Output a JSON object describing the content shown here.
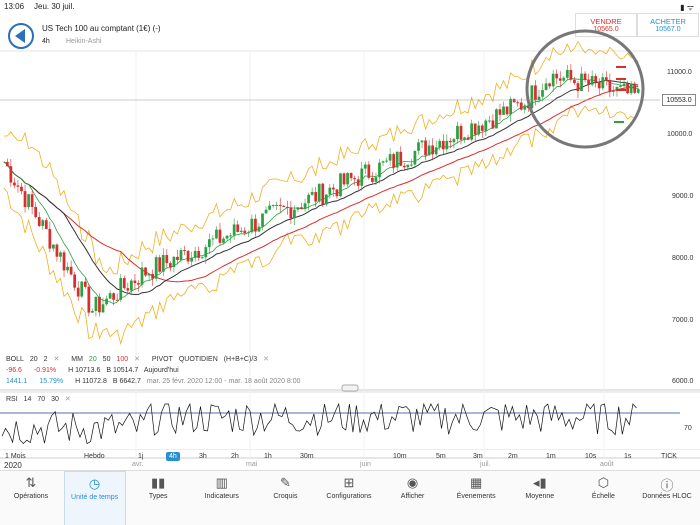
{
  "status": {
    "time": "13:06",
    "date": "Jeu. 30 juil.",
    "battery": "▮ ᯤ"
  },
  "instrument": {
    "title": "US Tech 100 au comptant (1€) (-)",
    "timeframe": "4h",
    "candle_type": "Heikin-Ashi"
  },
  "trade": {
    "sell_label": "VENDRE",
    "sell_price": "10565.0",
    "buy_label": "ACHETER",
    "buy_price": "10567.0"
  },
  "price_axis": [
    "11000.0",
    "10000.0",
    "9000.0",
    "8000.0",
    "7000.0",
    "6000.0"
  ],
  "current_price": "10553.0",
  "indicators": {
    "boll": "BOLL",
    "boll_p1": "20",
    "boll_p2": "2",
    "boll_x": "✕",
    "mm": "MM",
    "mm_p1": "20",
    "mm_p2": "50",
    "mm_p3": "100",
    "mm_x": "✕",
    "pivot": "PIVOT",
    "pivot_mode": "QUOTIDIEN",
    "pivot_formula": "(H+B+C)/3",
    "pivot_x": "✕"
  },
  "stats": {
    "change": "-96.6",
    "change_pct": "-0.91%",
    "high_today": "H 10713.6",
    "low_today": "B 10514.7",
    "today_label": "Aujourd'hui",
    "range_change": "1441.1",
    "range_pct": "15.79%",
    "high_range": "H 11072.8",
    "low_range": "B 6642.7",
    "range_label": "mar. 25 févr. 2020 12:00 - mar. 18 août 2020 8:00"
  },
  "rsi": {
    "label": "RSI",
    "p1": "14",
    "p2": "70",
    "p3": "30",
    "x": "✕",
    "level": "70"
  },
  "time_axis": {
    "year": "2020",
    "months": [
      "avr.",
      "mai",
      "juin",
      "juil.",
      "août"
    ]
  },
  "periods": [
    "1 Mois",
    "Hebdo",
    "1j",
    "4h",
    "3h",
    "2h",
    "1h",
    "30m",
    "10m",
    "5m",
    "3m",
    "2m",
    "1m",
    "10s",
    "1s",
    "TICK"
  ],
  "active_period": "4h",
  "toolbar": [
    {
      "label": "Opérations",
      "icon": "⇅"
    },
    {
      "label": "Unité de temps",
      "icon": "◷"
    },
    {
      "label": "Types",
      "icon": "▮▮"
    },
    {
      "label": "Indicateurs",
      "icon": "▥"
    },
    {
      "label": "Croquis",
      "icon": "✎"
    },
    {
      "label": "Configurations",
      "icon": "⊞"
    },
    {
      "label": "Afficher",
      "icon": "◉"
    },
    {
      "label": "Évenements",
      "icon": "▦"
    },
    {
      "label": "Moyenne",
      "icon": "◂▮"
    },
    {
      "label": "Échelle",
      "icon": "⬡"
    },
    {
      "label": "Données HLOC",
      "icon": "ⓘ"
    }
  ],
  "colors": {
    "accent": "#2a8fd0",
    "sell": "#d92e2e",
    "bull": "#2ea043",
    "bear": "#d92e2e",
    "boll": "#f0b020",
    "ma_long": "#333333",
    "ma_mid": "#d92e2e",
    "rsi_line": "#111111",
    "rsi_level": "#1f3f8f"
  }
}
